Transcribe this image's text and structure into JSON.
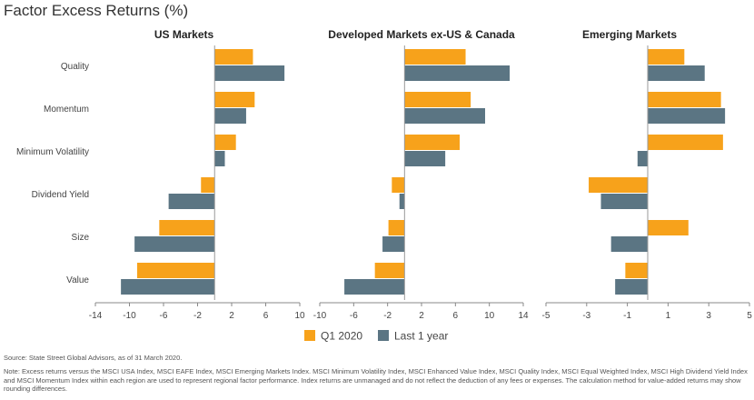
{
  "title": "Factor Excess Returns (%)",
  "source": "Source: State Street Global Advisors, as of 31 March 2020.",
  "note": "Note: Excess returns versus the MSCI USA Index, MSCI EAFE Index, MSCI Emerging Markets Index. MSCI Minimum Volatility Index, MSCI Enhanced Value Index, MSCI Quality Index, MSCI Equal Weighted Index, MSCI High Dividend Yield Index and MSCI Momentum Index within each region are used to represent regional factor performance. Index returns are unmanaged and do not reflect the deduction of any fees or expenses. The calculation method for value-added returns may show rounding differences.",
  "colors": {
    "q1": "#F7A21B",
    "year": "#5B7583",
    "axis": "#888888"
  },
  "chart_data": {
    "type": "bar",
    "orientation": "horizontal",
    "categories": [
      "Quality",
      "Momentum",
      "Minimum Volatility",
      "Dividend Yield",
      "Size",
      "Value"
    ],
    "legend": {
      "placement": "bottom-center",
      "entries": [
        "Q1 2020",
        "Last 1 year"
      ]
    },
    "grid": false,
    "panels": [
      {
        "title": "US Markets",
        "xlim": [
          -14,
          10
        ],
        "ticks": [
          -14,
          -10,
          -6,
          -2,
          2,
          6,
          10
        ],
        "series": [
          {
            "name": "Q1 2020",
            "values": [
              4.5,
              4.7,
              2.5,
              -1.6,
              -6.5,
              -9.1
            ]
          },
          {
            "name": "Last 1 year",
            "values": [
              8.2,
              3.7,
              1.2,
              -5.4,
              -9.4,
              -11.0
            ]
          }
        ]
      },
      {
        "title": "Developed Markets ex-US & Canada",
        "xlim": [
          -10,
          14
        ],
        "ticks": [
          -10,
          -6,
          -2,
          2,
          6,
          10,
          14
        ],
        "series": [
          {
            "name": "Q1 2020",
            "values": [
              7.2,
              7.8,
              6.5,
              -1.5,
              -1.9,
              -3.5
            ]
          },
          {
            "name": "Last 1 year",
            "values": [
              12.4,
              9.5,
              4.8,
              -0.6,
              -2.6,
              -7.1
            ]
          }
        ]
      },
      {
        "title": "Emerging Markets",
        "xlim": [
          -5,
          5
        ],
        "ticks": [
          -5,
          -3,
          -1,
          1,
          3,
          5
        ],
        "series": [
          {
            "name": "Q1 2020",
            "values": [
              1.8,
              3.6,
              3.7,
              -2.9,
              2.0,
              -1.1
            ]
          },
          {
            "name": "Last 1 year",
            "values": [
              2.8,
              3.8,
              -0.5,
              -2.3,
              -1.8,
              -1.6
            ]
          }
        ]
      }
    ]
  }
}
